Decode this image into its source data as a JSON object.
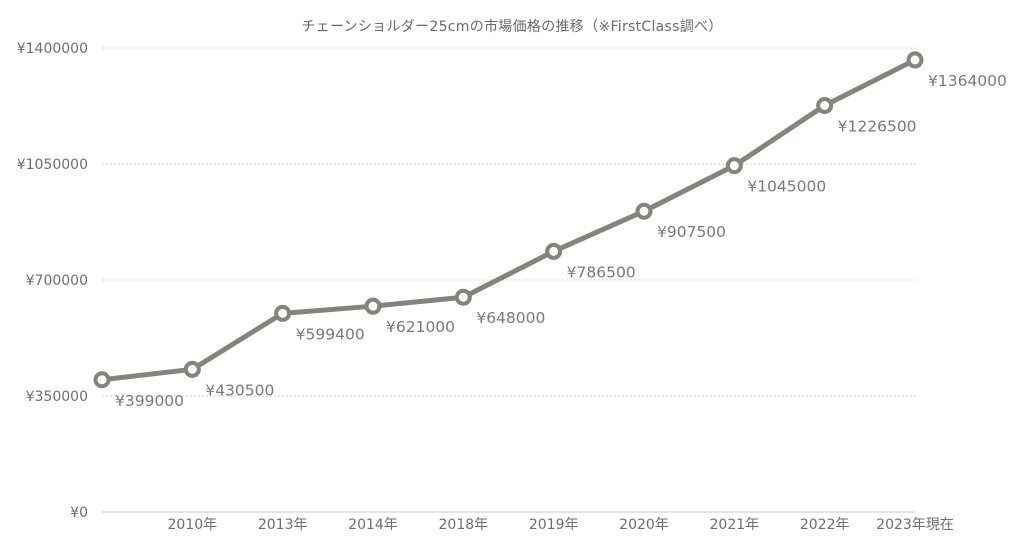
{
  "chart_data": {
    "type": "line",
    "title": "チェーンショルダー25cmの市場価格の推移（※FirstClass調べ）",
    "xlabel": "",
    "ylabel": "",
    "categories": [
      "",
      "2010年",
      "2013年",
      "2014年",
      "2018年",
      "2019年",
      "2020年",
      "2021年",
      "2022年",
      "2023年現在"
    ],
    "series": [
      {
        "name": "市場価格",
        "color": "#86827c",
        "values": [
          399000,
          430500,
          599400,
          621000,
          648000,
          786500,
          907500,
          1045000,
          1226500,
          1364000
        ],
        "data_labels": [
          "¥399000",
          "¥430500",
          "¥599400",
          "¥621000",
          "¥648000",
          "¥786500",
          "¥907500",
          "¥1045000",
          "¥1226500",
          "¥1364000"
        ]
      }
    ],
    "ylim": [
      0,
      1400000
    ],
    "yticks": [
      0,
      350000,
      700000,
      1050000,
      1400000
    ],
    "ytick_labels": [
      "¥0",
      "¥350000",
      "¥700000",
      "¥1050000",
      "¥1400000"
    ],
    "grid": true,
    "legend": "none"
  },
  "colors": {
    "line": "#86827c",
    "grid": "#d0d0d0",
    "text": "#6e6e6e"
  }
}
